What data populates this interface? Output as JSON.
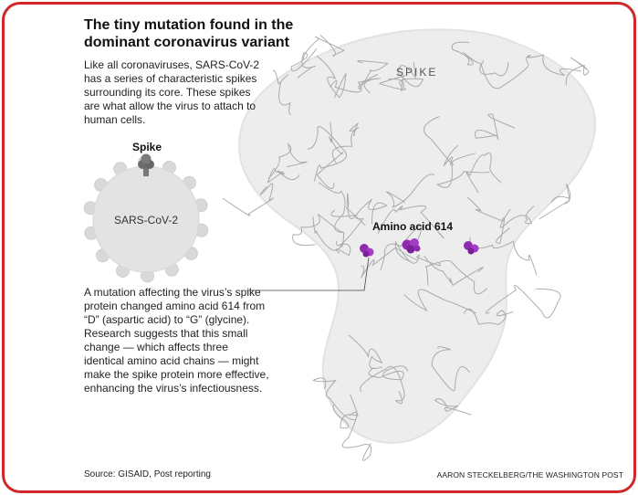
{
  "title": "The tiny mutation found in the dominant coronavirus variant",
  "intro": "Like all coronaviruses, SARS-CoV-2 has a series of characteristic spikes surrounding its core. These spikes are what allow the virus to attach to human cells.",
  "virus": {
    "spike_label": "Spike",
    "name_label": "SARS-CoV-2"
  },
  "protein": {
    "spike_label": "SPIKE",
    "amino_label": "Amino acid 614",
    "highlight_color": "#8e2bb0"
  },
  "mutation_text": "A mutation affecting the virus’s spike protein changed amino acid 614 from “D” (aspartic acid) to “G” (glycine). Research suggests that this small change — which affects three identical amino acid chains — might make the spike protein more effective, enhancing the virus’s infectiousness.",
  "source": "Source: GISAID, Post reporting",
  "credit": "AARON STECKELBERG/THE WASHINGTON POST",
  "colors": {
    "border": "#d0282a",
    "protein_fill": "#ededed",
    "ribbon": "#9a9a9a",
    "virus_fill": "#e3e3e3"
  }
}
